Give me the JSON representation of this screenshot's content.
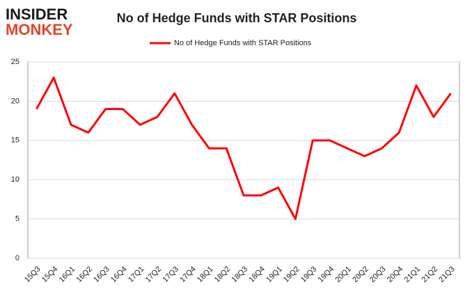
{
  "logo": {
    "line1": "INSIDER",
    "line2": "MONKEY"
  },
  "chart_data": {
    "type": "line",
    "title": "No of Hedge Funds with STAR Positions",
    "categories": [
      "15Q3",
      "15Q4",
      "16Q1",
      "16Q2",
      "16Q3",
      "16Q4",
      "17Q1",
      "17Q2",
      "17Q3",
      "17Q4",
      "18Q1",
      "18Q2",
      "18Q3",
      "18Q4",
      "19Q1",
      "19Q2",
      "19Q3",
      "19Q4",
      "20Q1",
      "20Q2",
      "20Q3",
      "20Q4",
      "21Q1",
      "21Q2",
      "21Q3"
    ],
    "series": [
      {
        "name": "No of Hedge Funds with STAR Positions",
        "color": "#ff0000",
        "values": [
          19,
          23,
          17,
          16,
          19,
          19,
          17,
          18,
          21,
          17,
          14,
          14,
          8,
          8,
          9,
          5,
          15,
          15,
          14,
          13,
          14,
          16,
          22,
          18,
          21
        ]
      }
    ],
    "ylim": [
      0,
      25
    ],
    "yticks": [
      0,
      5,
      10,
      15,
      20,
      25
    ],
    "grid": true,
    "legend": "top"
  }
}
